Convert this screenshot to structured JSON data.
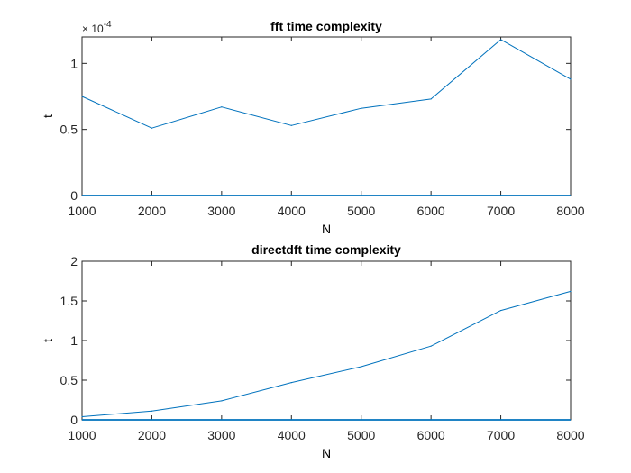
{
  "chart_data": [
    {
      "type": "line",
      "title": "fft time complexity",
      "xlabel": "N",
      "ylabel": "t",
      "exponent_label": "× 10",
      "exponent_power": "-4",
      "xlim": [
        1000,
        8000
      ],
      "ylim": [
        0,
        1.2
      ],
      "xticks": [
        "1000",
        "2000",
        "3000",
        "4000",
        "5000",
        "6000",
        "7000",
        "8000"
      ],
      "yticks": [
        "0",
        "0.5",
        "1"
      ],
      "ytick_values": [
        0,
        0.5,
        1
      ],
      "x": [
        1000,
        2000,
        3000,
        4000,
        5000,
        6000,
        7000,
        8000
      ],
      "series": [
        {
          "values": [
            0.75,
            0.51,
            0.67,
            0.53,
            0.66,
            0.73,
            1.18,
            0.88
          ]
        }
      ],
      "baseline": 0,
      "grid": false,
      "colors": {
        "line": "#0072BD",
        "axes": "#262626"
      }
    },
    {
      "type": "line",
      "title": "directdft time complexity",
      "xlabel": "N",
      "ylabel": "t",
      "xlim": [
        1000,
        8000
      ],
      "ylim": [
        0,
        2
      ],
      "xticks": [
        "1000",
        "2000",
        "3000",
        "4000",
        "5000",
        "6000",
        "7000",
        "8000"
      ],
      "yticks": [
        "0",
        "0.5",
        "1",
        "1.5",
        "2"
      ],
      "ytick_values": [
        0,
        0.5,
        1,
        1.5,
        2
      ],
      "x": [
        1000,
        2000,
        3000,
        4000,
        5000,
        6000,
        7000,
        8000
      ],
      "series": [
        {
          "values": [
            0.04,
            0.11,
            0.24,
            0.47,
            0.67,
            0.93,
            1.38,
            1.62
          ]
        }
      ],
      "baseline": 0,
      "grid": false,
      "colors": {
        "line": "#0072BD",
        "axes": "#262626"
      }
    }
  ]
}
